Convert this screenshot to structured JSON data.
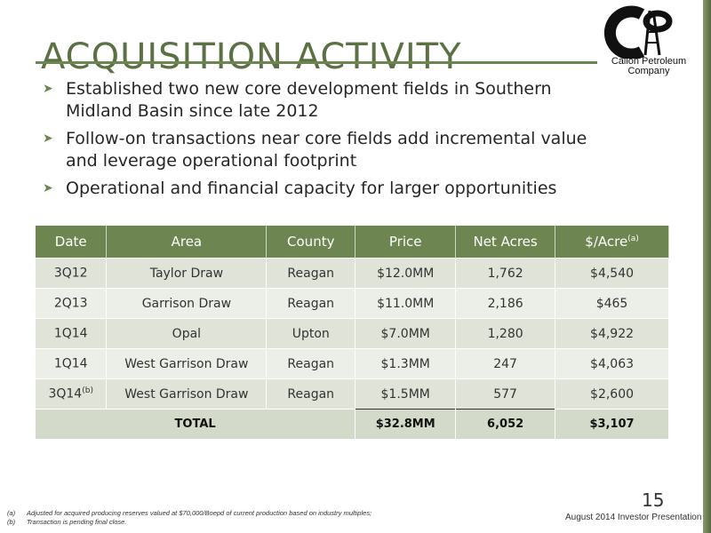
{
  "title": "ACQUISITION ACTIVITY",
  "logo": {
    "line1": "Callon Petroleum",
    "line2": "Company",
    "icon": "callon-cp-derrick-logo"
  },
  "bullets": [
    "Established two new core development fields in Southern Midland Basin since late 2012",
    "Follow-on transactions near core fields add incremental value and leverage operational footprint",
    "Operational and financial capacity for larger opportunities"
  ],
  "table": {
    "headers": [
      "Date",
      "Area",
      "County",
      "Price",
      "Net Acres",
      "$/Acre"
    ],
    "header_sup": "(a)",
    "rows": [
      {
        "date": "3Q12",
        "date_sup": "",
        "area": "Taylor Draw",
        "county": "Reagan",
        "price": "$12.0MM",
        "acres": "1,762",
        "per_acre": "$4,540"
      },
      {
        "date": "2Q13",
        "date_sup": "",
        "area": "Garrison Draw",
        "county": "Reagan",
        "price": "$11.0MM",
        "acres": "2,186",
        "per_acre": "$465"
      },
      {
        "date": "1Q14",
        "date_sup": "",
        "area": "Opal",
        "county": "Upton",
        "price": "$7.0MM",
        "acres": "1,280",
        "per_acre": "$4,922"
      },
      {
        "date": "1Q14",
        "date_sup": "",
        "area": "West Garrison Draw",
        "county": "Reagan",
        "price": "$1.3MM",
        "acres": "247",
        "per_acre": "$4,063"
      },
      {
        "date": "3Q14",
        "date_sup": "(b)",
        "area": "West Garrison Draw",
        "county": "Reagan",
        "price": "$1.5MM",
        "acres": "577",
        "per_acre": "$2,600"
      }
    ],
    "total": {
      "label": "TOTAL",
      "price": "$32.8MM",
      "acres": "6,052",
      "per_acre": "$3,107"
    }
  },
  "footnotes": [
    {
      "label": "(a)",
      "text": "Adjusted for acquired producing reserves valued at $70,000/Boepd of current production based on industry multiples;"
    },
    {
      "label": "(b)",
      "text": "Transaction is pending final close."
    }
  ],
  "page_number": "15",
  "footer": "August 2014 Investor Presentation",
  "colors": {
    "accent": "#6d8550",
    "row_light": "#ecefe8",
    "row_dark": "#dfe3d8"
  }
}
